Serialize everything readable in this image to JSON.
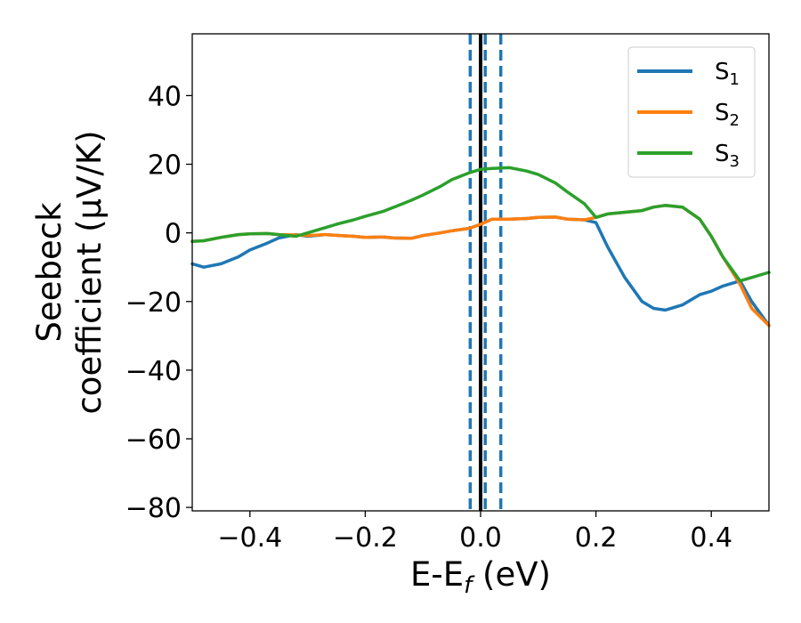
{
  "chart_data": {
    "type": "line",
    "xlabel": {
      "main": "E-E",
      "sub": "f",
      "tail": " (eV)"
    },
    "ylabel": {
      "line1": "Seebeck",
      "line2": "coefficient  (μV/K)"
    },
    "xlim": [
      -0.5,
      0.5
    ],
    "ylim": [
      -81,
      58
    ],
    "xticks": [
      -0.4,
      -0.2,
      0.0,
      0.2,
      0.4
    ],
    "xtick_labels": [
      "−0.4",
      "−0.2",
      "0.0",
      "0.2",
      "0.4"
    ],
    "yticks": [
      -80,
      -60,
      -40,
      -20,
      0,
      20,
      40
    ],
    "ytick_labels": [
      "−80",
      "−60",
      "−40",
      "−20",
      "0",
      "20",
      "40"
    ],
    "grid": false,
    "legend_position": "top-right",
    "vlines": [
      {
        "x": 0.0,
        "color": "#000000",
        "style": "solid"
      },
      {
        "x": -0.018,
        "color": "#1f77b4",
        "style": "dashed"
      },
      {
        "x": 0.008,
        "color": "#1f77b4",
        "style": "dashed"
      },
      {
        "x": 0.035,
        "color": "#1f77b4",
        "style": "dashed"
      }
    ],
    "series": [
      {
        "name": "S",
        "sub": "1",
        "color": "#1f77b4",
        "x": [
          -0.5,
          -0.48,
          -0.45,
          -0.42,
          -0.4,
          -0.37,
          -0.35,
          -0.32,
          -0.3,
          -0.27,
          -0.25,
          -0.22,
          -0.2,
          -0.17,
          -0.15,
          -0.12,
          -0.1,
          -0.07,
          -0.05,
          -0.02,
          0.0,
          0.02,
          0.05,
          0.08,
          0.1,
          0.13,
          0.15,
          0.18,
          0.2,
          0.22,
          0.25,
          0.28,
          0.3,
          0.32,
          0.35,
          0.38,
          0.4,
          0.42,
          0.45,
          0.47,
          0.5
        ],
        "y": [
          -9,
          -10,
          -9,
          -7,
          -5,
          -3,
          -1.5,
          -0.5,
          -1,
          -0.5,
          -0.7,
          -1,
          -1.3,
          -1.2,
          -1.5,
          -1.6,
          -0.8,
          0,
          0.6,
          1.3,
          2.5,
          4,
          4,
          4.2,
          4.5,
          4.6,
          4,
          3.8,
          3,
          -4,
          -13,
          -20,
          -22,
          -22.5,
          -21,
          -18,
          -17,
          -15.5,
          -14,
          -20,
          -27
        ]
      },
      {
        "name": "S",
        "sub": "2",
        "color": "#ff7f0e",
        "x": [
          -0.5,
          -0.48,
          -0.45,
          -0.42,
          -0.4,
          -0.37,
          -0.35,
          -0.32,
          -0.3,
          -0.27,
          -0.25,
          -0.22,
          -0.2,
          -0.17,
          -0.15,
          -0.12,
          -0.1,
          -0.07,
          -0.05,
          -0.02,
          0.0,
          0.02,
          0.05,
          0.08,
          0.1,
          0.13,
          0.15,
          0.18,
          0.2,
          0.22,
          0.25,
          0.28,
          0.3,
          0.32,
          0.35,
          0.38,
          0.4,
          0.42,
          0.45,
          0.47,
          0.5
        ],
        "y": [
          -2.5,
          -2.3,
          -1.3,
          -0.5,
          -0.3,
          -0.2,
          -0.5,
          -0.6,
          -0.8,
          -0.5,
          -0.7,
          -1,
          -1.3,
          -1.2,
          -1.5,
          -1.6,
          -0.8,
          0,
          0.6,
          1.3,
          2.5,
          4,
          4,
          4.2,
          4.5,
          4.6,
          4,
          3.8,
          4.5,
          5.5,
          6,
          6.5,
          7.5,
          8,
          7.5,
          4,
          -1,
          -7,
          -15,
          -22,
          -27
        ]
      },
      {
        "name": "S",
        "sub": "3",
        "color": "#2ca02c",
        "x": [
          -0.5,
          -0.48,
          -0.45,
          -0.42,
          -0.4,
          -0.37,
          -0.35,
          -0.32,
          -0.3,
          -0.27,
          -0.25,
          -0.22,
          -0.2,
          -0.17,
          -0.15,
          -0.12,
          -0.1,
          -0.07,
          -0.05,
          -0.02,
          0.0,
          0.02,
          0.05,
          0.08,
          0.1,
          0.13,
          0.15,
          0.18,
          0.2,
          0.22,
          0.25,
          0.28,
          0.3,
          0.32,
          0.35,
          0.38,
          0.4,
          0.42,
          0.45,
          0.47,
          0.5
        ],
        "y": [
          -2.5,
          -2.3,
          -1.3,
          -0.5,
          -0.3,
          -0.2,
          -0.5,
          -1,
          0,
          1.5,
          2.5,
          3.8,
          4.8,
          6.2,
          7.5,
          9.5,
          11,
          13.5,
          15.5,
          17.5,
          18.5,
          18.8,
          19,
          18,
          17,
          14.5,
          12,
          8.5,
          4.5,
          5.5,
          6,
          6.5,
          7.5,
          8,
          7.5,
          4,
          -1,
          -7,
          -14,
          -13,
          -11.5
        ]
      }
    ]
  }
}
